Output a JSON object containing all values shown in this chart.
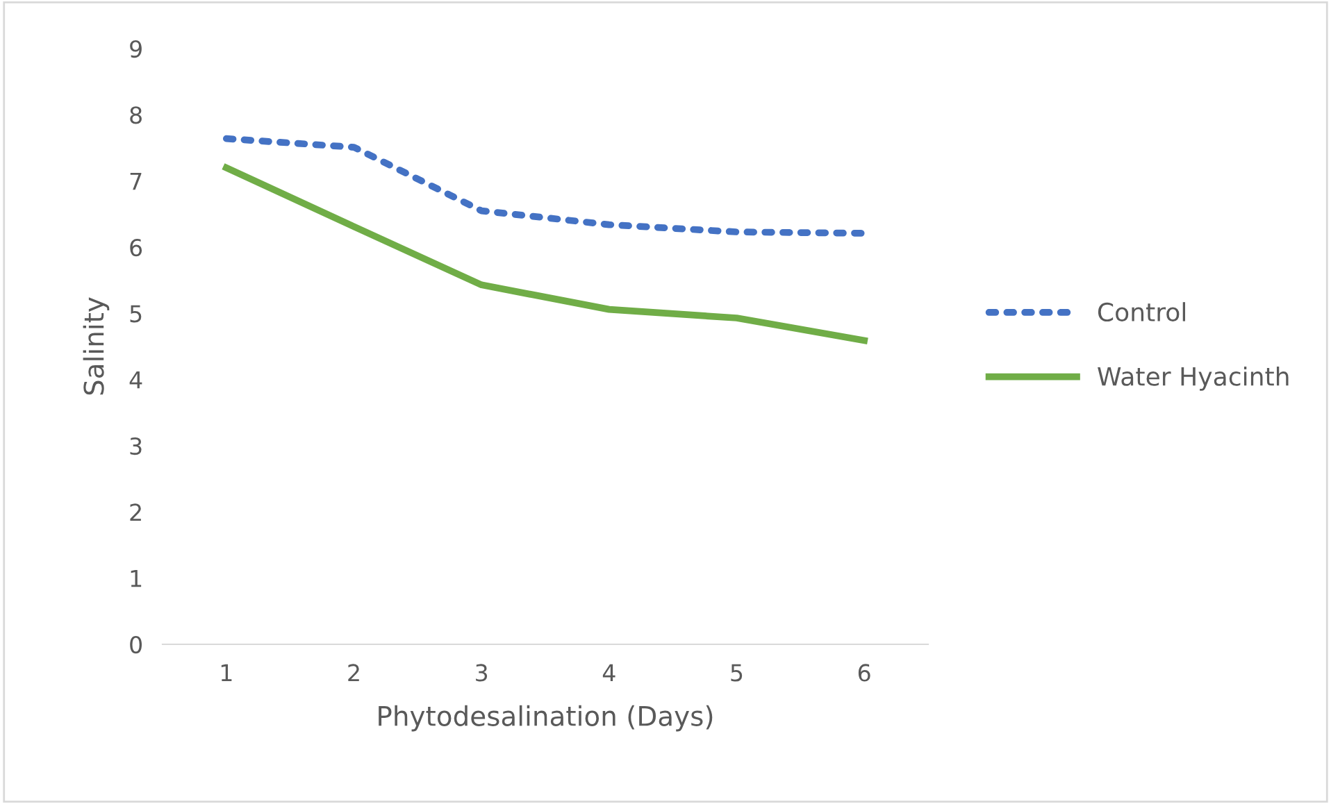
{
  "chart_data": {
    "type": "line",
    "xlabel": "Phytodesalination (Days)",
    "ylabel": "Salinity",
    "categories": [
      "1",
      "2",
      "3",
      "4",
      "5",
      "6"
    ],
    "series": [
      {
        "name": "Control",
        "color": "#4472c4",
        "line_style": "dotted",
        "values": [
          7.64,
          7.51,
          6.55,
          6.34,
          6.23,
          6.21
        ]
      },
      {
        "name": "Water Hyacinth",
        "color": "#70ad47",
        "line_style": "solid",
        "values": [
          7.2,
          6.31,
          5.43,
          5.06,
          4.93,
          4.59
        ]
      }
    ],
    "ylim": [
      0,
      9
    ],
    "yticks": [
      0,
      1,
      2,
      3,
      4,
      5,
      6,
      7,
      8,
      9
    ],
    "grid": false,
    "legend": "right",
    "marker": "none"
  }
}
